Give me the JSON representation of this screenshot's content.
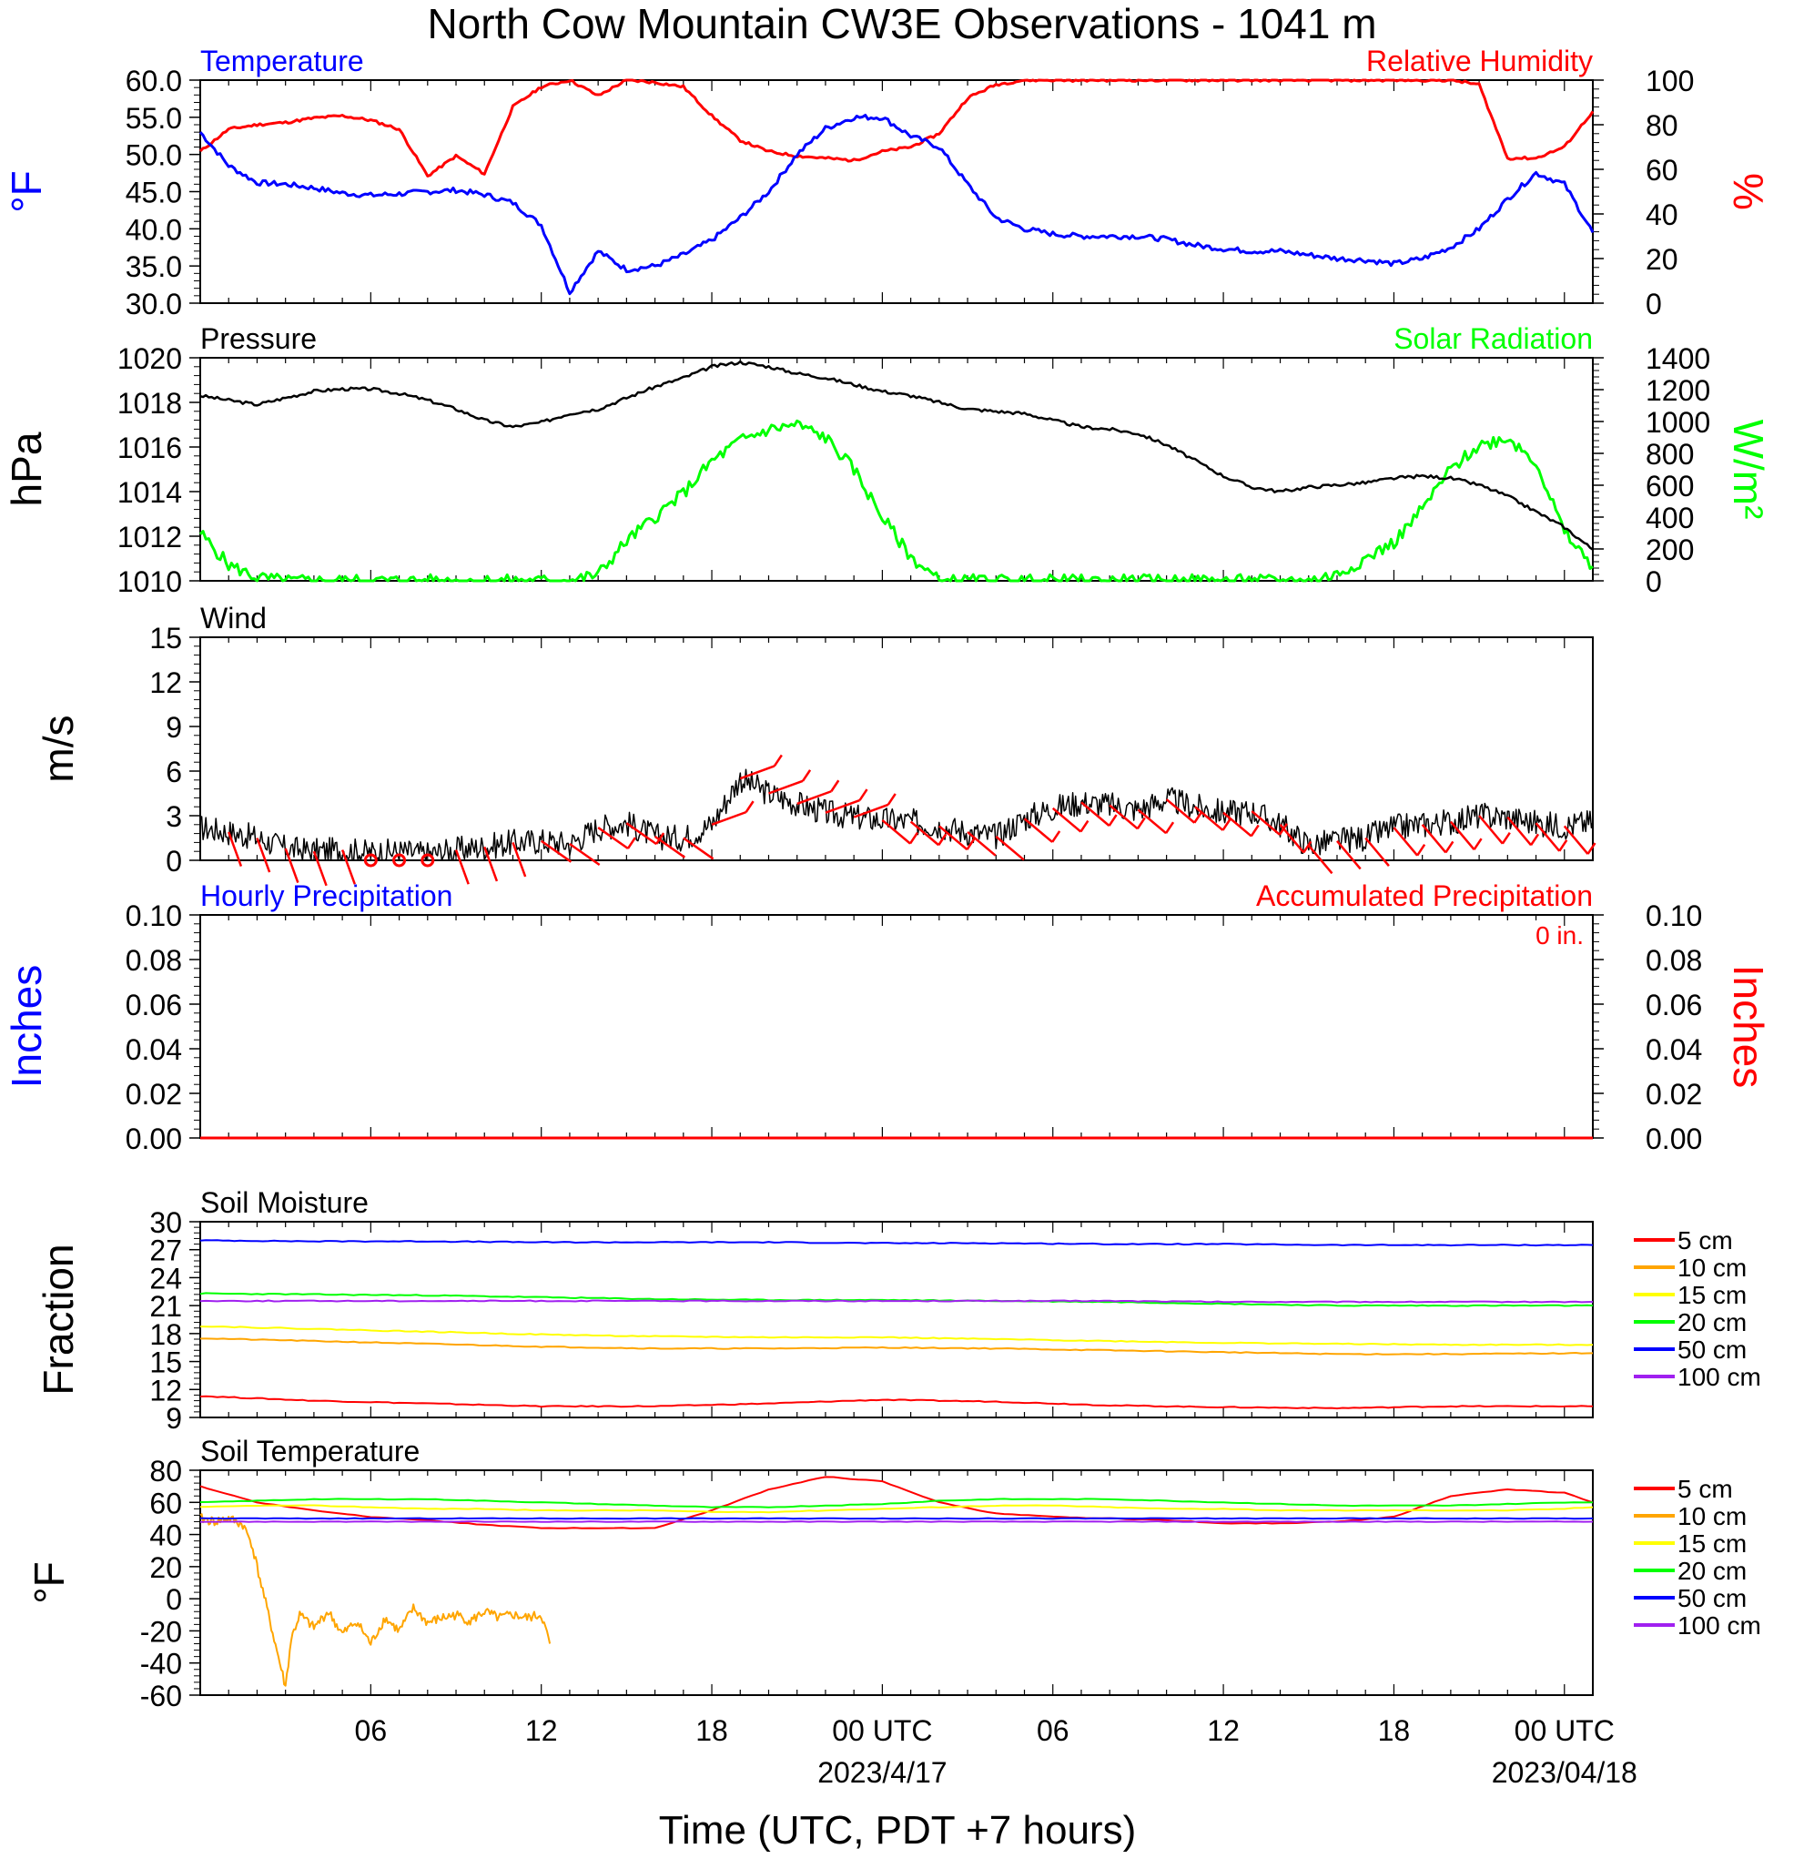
{
  "title": "North Cow Mountain CW3E Observations - 1041 m",
  "xlabel": "Time (UTC, PDT +7 hours)",
  "colors": {
    "blue": "#0000ff",
    "red": "#ff0000",
    "green": "#00ff00",
    "black": "#000000",
    "orange": "#ffa500",
    "yellow": "#ffff00",
    "purple": "#a020f0"
  },
  "x_ticks": [
    "06",
    "12",
    "18",
    "00 UTC",
    "06",
    "12",
    "18",
    "00 UTC"
  ],
  "x_dates": [
    "2023/4/17",
    "2023/04/18"
  ],
  "chart_data": [
    {
      "type": "line",
      "name": "temperature-humidity",
      "left_title": "Temperature",
      "right_title": "Relative Humidity",
      "ylabel": "°F",
      "ylabel_right": "%",
      "ylim": [
        30,
        60
      ],
      "ylim_right": [
        0,
        100
      ],
      "yticks": [
        "30.0",
        "35.0",
        "40.0",
        "45.0",
        "50.0",
        "55.0",
        "60.0"
      ],
      "yticks_right": [
        "0",
        "20",
        "40",
        "60",
        "80",
        "100"
      ],
      "x": [
        0,
        1,
        2,
        3,
        4,
        5,
        6,
        7,
        8,
        9,
        10,
        11,
        12,
        13,
        14,
        15,
        16,
        17,
        18,
        19,
        20,
        21,
        22,
        23,
        24,
        25,
        26,
        27,
        28,
        29,
        30,
        31,
        32,
        33,
        34,
        35,
        36,
        37,
        38,
        39,
        40,
        41,
        42,
        43,
        44,
        45,
        46,
        47,
        48,
        49
      ],
      "series": [
        {
          "name": "Temperature",
          "axis": "left",
          "color": "#0000ff",
          "values": [
            53,
            48.5,
            46.2,
            46,
            45.5,
            44.8,
            44.5,
            44.7,
            45,
            45.2,
            44.6,
            43.5,
            40.5,
            31.5,
            37,
            34.5,
            35,
            36.5,
            38.5,
            41.5,
            45,
            50,
            53.5,
            55,
            55,
            52.5,
            51,
            46,
            41.5,
            40,
            39.3,
            39,
            39,
            39,
            38.6,
            37.8,
            37.3,
            37,
            37,
            36.5,
            36,
            35.8,
            35.3,
            36,
            37.5,
            40,
            44,
            47.5,
            46,
            39.5
          ]
        },
        {
          "name": "Relative Humidity",
          "axis": "right",
          "color": "#ff0000",
          "values": [
            68,
            78,
            80,
            81,
            83,
            84,
            82,
            78,
            57,
            66,
            58,
            88,
            97,
            100,
            93,
            100,
            99,
            97,
            84,
            73,
            68,
            66,
            65,
            64,
            68,
            70,
            76,
            92,
            98,
            100,
            100,
            100,
            100,
            100,
            100,
            100,
            100,
            100,
            100,
            100,
            100,
            100,
            100,
            100,
            100,
            98,
            65,
            65,
            70,
            86
          ]
        }
      ]
    },
    {
      "type": "line",
      "name": "pressure-solar",
      "left_title": "Pressure",
      "right_title": "Solar Radiation",
      "ylabel": "hPa",
      "ylabel_right": "W/m²",
      "ylim": [
        1010,
        1020
      ],
      "ylim_right": [
        0,
        1400
      ],
      "yticks": [
        "1010",
        "1012",
        "1014",
        "1016",
        "1018",
        "1020"
      ],
      "yticks_right": [
        "0",
        "200",
        "400",
        "600",
        "800",
        "1000",
        "1200",
        "1400"
      ],
      "x": [
        0,
        1,
        2,
        3,
        4,
        5,
        6,
        7,
        8,
        9,
        10,
        11,
        12,
        13,
        14,
        15,
        16,
        17,
        18,
        19,
        20,
        21,
        22,
        23,
        24,
        25,
        26,
        27,
        28,
        29,
        30,
        31,
        32,
        33,
        34,
        35,
        36,
        37,
        38,
        39,
        40,
        41,
        42,
        43,
        44,
        45,
        46,
        47,
        48,
        49
      ],
      "series": [
        {
          "name": "Pressure",
          "axis": "left",
          "color": "#000000",
          "values": [
            1018.3,
            1018.1,
            1017.9,
            1018.2,
            1018.5,
            1018.6,
            1018.6,
            1018.4,
            1018.1,
            1017.7,
            1017.2,
            1016.9,
            1017.1,
            1017.5,
            1017.7,
            1018.2,
            1018.7,
            1019.1,
            1019.6,
            1019.8,
            1019.6,
            1019.3,
            1019.1,
            1018.8,
            1018.5,
            1018.3,
            1018.0,
            1017.7,
            1017.6,
            1017.5,
            1017.2,
            1016.9,
            1016.8,
            1016.6,
            1016.1,
            1015.4,
            1014.7,
            1014.2,
            1014.0,
            1014.2,
            1014.3,
            1014.4,
            1014.6,
            1014.7,
            1014.6,
            1014.3,
            1013.8,
            1013.1,
            1012.4,
            1011.4
          ]
        },
        {
          "name": "Solar Radiation",
          "axis": "right",
          "color": "#00ff00",
          "values": [
            300,
            100,
            20,
            0,
            0,
            0,
            0,
            0,
            0,
            0,
            0,
            0,
            0,
            0,
            40,
            250,
            400,
            550,
            750,
            880,
            950,
            980,
            900,
            700,
            400,
            150,
            0,
            0,
            0,
            0,
            0,
            0,
            0,
            0,
            0,
            0,
            0,
            0,
            0,
            0,
            40,
            140,
            240,
            450,
            700,
            850,
            900,
            750,
            300,
            90
          ]
        }
      ]
    },
    {
      "type": "line",
      "name": "wind",
      "left_title": "Wind",
      "ylabel": "m/s",
      "ylim": [
        0,
        15
      ],
      "yticks": [
        "0",
        "3",
        "6",
        "9",
        "12",
        "15"
      ],
      "x": [
        0,
        1,
        2,
        3,
        4,
        5,
        6,
        7,
        8,
        9,
        10,
        11,
        12,
        13,
        14,
        15,
        16,
        17,
        18,
        19,
        20,
        21,
        22,
        23,
        24,
        25,
        26,
        27,
        28,
        29,
        30,
        31,
        32,
        33,
        34,
        35,
        36,
        37,
        38,
        39,
        40,
        41,
        42,
        43,
        44,
        45,
        46,
        47,
        48,
        49
      ],
      "series": [
        {
          "name": "Wind Speed",
          "axis": "left",
          "color": "#000000",
          "values": [
            2.2,
            1.9,
            1.5,
            0.8,
            0.6,
            0.7,
            0.5,
            0.6,
            0.4,
            0.7,
            0.9,
            1.2,
            1.3,
            1.1,
            2.2,
            2.5,
            1.6,
            1.5,
            2.4,
            5.5,
            4.5,
            3.8,
            3.2,
            2.9,
            2.7,
            2.6,
            2.3,
            1.9,
            1.6,
            2.8,
            3.5,
            3.9,
            3.7,
            3.4,
            4.1,
            3.6,
            3.2,
            3.3,
            2.4,
            1.0,
            1.3,
            1.5,
            2.2,
            2.4,
            2.6,
            3.0,
            2.9,
            2.5,
            2.3,
            2.6
          ]
        }
      ],
      "barbs_color": "#ff0000",
      "calm_hours": [
        6,
        7,
        8
      ]
    },
    {
      "type": "line",
      "name": "precipitation",
      "left_title": "Hourly Precipitation",
      "right_title": "Accumulated Precipitation",
      "annotation": "0 in.",
      "ylabel": "Inches",
      "ylabel_right": "Inches",
      "ylim": [
        0,
        0.1
      ],
      "ylim_right": [
        0,
        0.1
      ],
      "yticks": [
        "0.00",
        "0.02",
        "0.04",
        "0.06",
        "0.08",
        "0.10"
      ],
      "yticks_right": [
        "0.00",
        "0.02",
        "0.04",
        "0.06",
        "0.08",
        "0.10"
      ],
      "series": [
        {
          "name": "Accumulated Precipitation",
          "axis": "right",
          "color": "#ff0000",
          "values": [
            0,
            0
          ]
        }
      ]
    },
    {
      "type": "line",
      "name": "soil-moisture",
      "left_title": "Soil Moisture",
      "ylabel": "Fraction",
      "ylim": [
        9,
        30
      ],
      "yticks": [
        "9",
        "12",
        "15",
        "18",
        "21",
        "24",
        "27",
        "30"
      ],
      "x": [
        0,
        4,
        8,
        12,
        16,
        20,
        24,
        28,
        32,
        36,
        40,
        44,
        49
      ],
      "series": [
        {
          "name": "5 cm",
          "color": "#ff0000",
          "values": [
            11.3,
            10.8,
            10.5,
            10.2,
            10.2,
            10.5,
            10.9,
            10.7,
            10.3,
            10.1,
            10.0,
            10.2,
            10.2
          ]
        },
        {
          "name": "10 cm",
          "color": "#ffa500",
          "values": [
            17.5,
            17.2,
            16.9,
            16.6,
            16.4,
            16.4,
            16.5,
            16.4,
            16.2,
            16.0,
            15.8,
            15.8,
            15.9
          ]
        },
        {
          "name": "15 cm",
          "color": "#ffff00",
          "values": [
            18.8,
            18.5,
            18.2,
            17.9,
            17.7,
            17.6,
            17.6,
            17.4,
            17.2,
            17.0,
            16.9,
            16.8,
            16.8
          ]
        },
        {
          "name": "20 cm",
          "color": "#00ff00",
          "values": [
            22.3,
            22.2,
            22.1,
            21.9,
            21.7,
            21.6,
            21.6,
            21.5,
            21.4,
            21.2,
            21.0,
            21.0,
            21.0
          ]
        },
        {
          "name": "50 cm",
          "color": "#0000ff",
          "values": [
            28.0,
            27.9,
            27.9,
            27.8,
            27.8,
            27.8,
            27.7,
            27.7,
            27.6,
            27.6,
            27.5,
            27.5,
            27.5
          ]
        },
        {
          "name": "100 cm",
          "color": "#a020f0",
          "values": [
            21.5,
            21.5,
            21.5,
            21.5,
            21.5,
            21.5,
            21.5,
            21.5,
            21.5,
            21.4,
            21.4,
            21.4,
            21.4
          ]
        }
      ]
    },
    {
      "type": "line",
      "name": "soil-temperature",
      "left_title": "Soil Temperature",
      "ylabel": "°F",
      "ylim": [
        -60,
        80
      ],
      "yticks": [
        "-60",
        "-40",
        "-20",
        "0",
        "20",
        "40",
        "60",
        "80"
      ],
      "x": [
        0,
        2,
        4,
        6,
        8,
        10,
        12,
        14,
        16,
        18,
        20,
        22,
        24,
        26,
        28,
        30,
        32,
        34,
        36,
        38,
        40,
        42,
        44,
        46,
        48,
        49
      ],
      "series": [
        {
          "name": "5 cm",
          "color": "#ff0000",
          "values": [
            70,
            60,
            55,
            51,
            49,
            46,
            44,
            44,
            44,
            55,
            68,
            76,
            73,
            60,
            53,
            51,
            50,
            49,
            47,
            47,
            48,
            51,
            64,
            68,
            66,
            60
          ]
        },
        {
          "name": "10 cm",
          "color": "#ffa500",
          "x": [
            0,
            0.5,
            1,
            1.5,
            1.8,
            3,
            3.2,
            3.5,
            4,
            4.5,
            5,
            5.5,
            6,
            6.5,
            7,
            7.5,
            8,
            8.5,
            9,
            9.5,
            10,
            10.5,
            11,
            11.5,
            12,
            12.3
          ],
          "values": [
            50,
            48,
            50,
            46,
            35,
            -55,
            -25,
            -10,
            -18,
            -8,
            -22,
            -14,
            -28,
            -12,
            -20,
            -6,
            -15,
            -12,
            -10,
            -14,
            -8,
            -12,
            -10,
            -12,
            -10,
            -28
          ]
        },
        {
          "name": "15 cm",
          "color": "#ffff00",
          "values": [
            57,
            58,
            58,
            57,
            56,
            56,
            55,
            55,
            55,
            54,
            54,
            55,
            56,
            57,
            58,
            58,
            57,
            56,
            56,
            55,
            55,
            55,
            55,
            55,
            56,
            57
          ]
        },
        {
          "name": "20 cm",
          "color": "#00ff00",
          "values": [
            60,
            61,
            62,
            62,
            62,
            61,
            60,
            59,
            58,
            57,
            57,
            58,
            59,
            61,
            62,
            62,
            62,
            61,
            60,
            59,
            58,
            58,
            58,
            59,
            60,
            60
          ]
        },
        {
          "name": "50 cm",
          "color": "#0000ff",
          "values": [
            50,
            50,
            50,
            50,
            50,
            50,
            50,
            50,
            50,
            50,
            50,
            50,
            50,
            50,
            50,
            50,
            50,
            50,
            50,
            50,
            50,
            50,
            50,
            50,
            50,
            50
          ]
        },
        {
          "name": "100 cm",
          "color": "#a020f0",
          "values": [
            48,
            48,
            48,
            48,
            48,
            48,
            48,
            48,
            48,
            48,
            48,
            48,
            48,
            48,
            48,
            48,
            48,
            48,
            48,
            48,
            48,
            48,
            48,
            48,
            48,
            48
          ]
        }
      ]
    }
  ]
}
